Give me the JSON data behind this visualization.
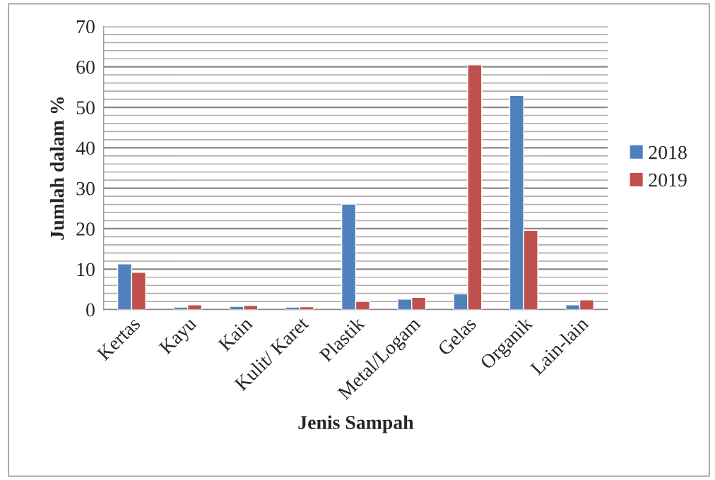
{
  "chart_data": {
    "type": "bar",
    "xlabel": "Jenis Sampah",
    "ylabel": "Jumlah dalam %",
    "categories": [
      "Kertas",
      "Kayu",
      "Kain",
      "Kulit/ Karet",
      "Plastik",
      "Metal/Logam",
      "Gelas",
      "Organik",
      "Lain-lain"
    ],
    "series": [
      {
        "name": "2018",
        "color": "#4f81bd",
        "values": [
          11.3,
          0.6,
          0.8,
          0.6,
          26.1,
          2.6,
          3.9,
          52.9,
          1.2
        ]
      },
      {
        "name": "2019",
        "color": "#c0504d",
        "values": [
          9.2,
          1.2,
          1.0,
          0.7,
          2.0,
          3.0,
          60.5,
          19.6,
          2.4
        ]
      }
    ],
    "ylim": [
      0,
      70
    ],
    "yticks": [
      0,
      {
        "value": 2,
        "label": null
      },
      {
        "value": 4,
        "label": null
      },
      {
        "value": 6,
        "label": null
      },
      {
        "value": 8,
        "label": null
      },
      10,
      {
        "value": 12,
        "label": null
      },
      {
        "value": 14,
        "label": null
      },
      {
        "value": 16,
        "label": null
      },
      {
        "value": 18,
        "label": null
      },
      20,
      {
        "value": 22,
        "label": null
      },
      {
        "value": 24,
        "label": null
      },
      {
        "value": 26,
        "label": null
      },
      {
        "value": 28,
        "label": null
      },
      30,
      {
        "value": 32,
        "label": null
      },
      {
        "value": 34,
        "label": null
      },
      {
        "value": 36,
        "label": null
      },
      {
        "value": 38,
        "label": null
      },
      40,
      {
        "value": 42,
        "label": null
      },
      {
        "value": 44,
        "label": null
      },
      {
        "value": 46,
        "label": null
      },
      {
        "value": 48,
        "label": null
      },
      50,
      {
        "value": 52,
        "label": null
      },
      {
        "value": 54,
        "label": null
      },
      {
        "value": 56,
        "label": null
      },
      {
        "value": 58,
        "label": null
      },
      60,
      {
        "value": 62,
        "label": null
      },
      {
        "value": 64,
        "label": null
      },
      {
        "value": 66,
        "label": null
      },
      {
        "value": 68,
        "label": null
      },
      70
    ],
    "grid": "y",
    "legend": "right"
  }
}
